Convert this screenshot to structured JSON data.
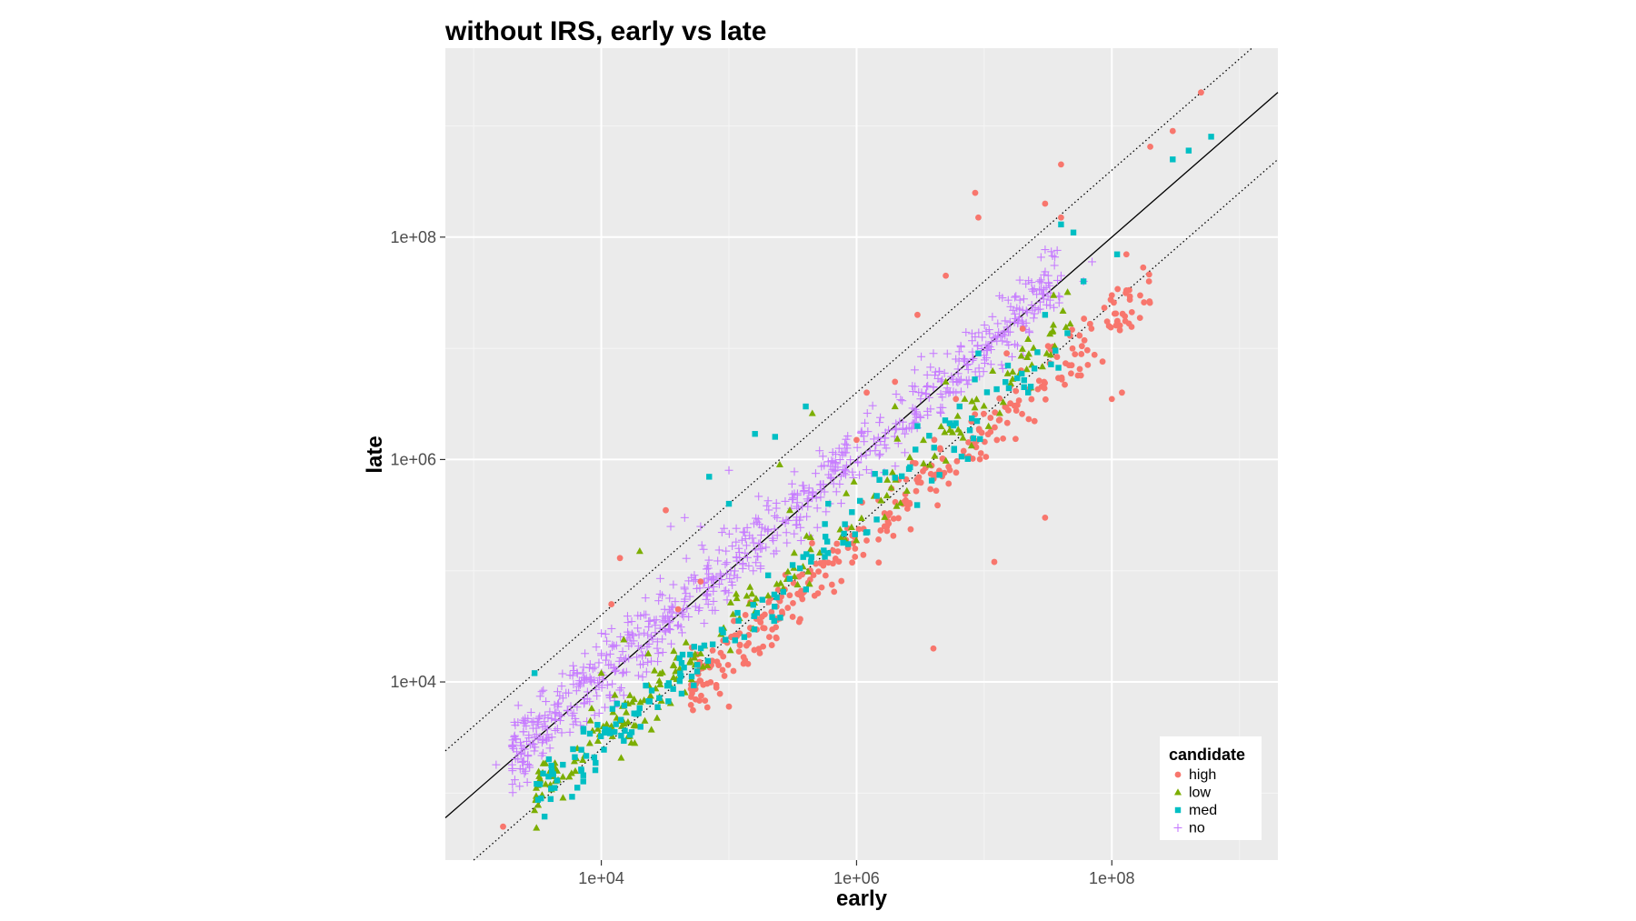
{
  "chart_data": {
    "type": "scatter",
    "title": "without IRS, early vs late",
    "xlabel": "early",
    "ylabel": "late",
    "x_scale": "log10",
    "y_scale": "log10",
    "xlim": [
      600,
      2000000000
    ],
    "ylim": [
      250,
      5000000000
    ],
    "x_ticks": [
      {
        "value": 10000,
        "label": "1e+04"
      },
      {
        "value": 1000000,
        "label": "1e+06"
      },
      {
        "value": 100000000,
        "label": "1e+08"
      }
    ],
    "y_ticks": [
      {
        "value": 10000,
        "label": "1e+04"
      },
      {
        "value": 1000000,
        "label": "1e+06"
      },
      {
        "value": 100000000,
        "label": "1e+08"
      }
    ],
    "grid": true,
    "background": "#ebebeb",
    "reference_lines": [
      {
        "kind": "identity",
        "y_equals_x_times": 1,
        "style": "solid"
      },
      {
        "kind": "upper",
        "y_equals_x_times": 4,
        "style": "dotted"
      },
      {
        "kind": "lower",
        "y_equals_x_times": 0.25,
        "style": "dotted"
      }
    ],
    "legend": {
      "title": "candidate",
      "position": "bottom-right inside",
      "entries": [
        {
          "label": "high",
          "color": "#f8766d",
          "shape": "circle"
        },
        {
          "label": "low",
          "color": "#7cae00",
          "shape": "triangle"
        },
        {
          "label": "med",
          "color": "#00bfc4",
          "shape": "square"
        },
        {
          "label": "no",
          "color": "#c77cff",
          "shape": "plus"
        }
      ]
    },
    "series": [
      {
        "name": "high",
        "color": "#f8766d",
        "shape": "circle",
        "trend": {
          "ratio": 0.18,
          "x_range": [
            50000,
            200000000
          ],
          "n": 330,
          "spread_log10": 0.15
        },
        "points": [
          [
            1700,
            500
          ],
          [
            14000,
            130000
          ],
          [
            12000,
            50000
          ],
          [
            32000,
            350000
          ],
          [
            60000,
            80000
          ],
          [
            100000,
            6000
          ],
          [
            40000,
            45000
          ],
          [
            2000000,
            5000000
          ],
          [
            1200000,
            4000000
          ],
          [
            9000000,
            150000000
          ],
          [
            8500000,
            250000000
          ],
          [
            40000000,
            450000000
          ],
          [
            30000000,
            200000000
          ],
          [
            5000000,
            45000000
          ],
          [
            3000000,
            20000000
          ],
          [
            12000000,
            120000
          ],
          [
            4000000,
            20000
          ],
          [
            30000000,
            300000
          ],
          [
            120000000,
            4000000
          ],
          [
            100000000,
            3500000
          ],
          [
            100000000,
            30000000
          ],
          [
            130000000,
            70000000
          ],
          [
            500000000,
            2000000000
          ],
          [
            300000000,
            900000000
          ],
          [
            200000000,
            650000000
          ],
          [
            40000000,
            150000000
          ],
          [
            15000000,
            9000000
          ],
          [
            6000000,
            3500000
          ],
          [
            20000000,
            15000000
          ],
          [
            1000000,
            1500000
          ]
        ]
      },
      {
        "name": "low",
        "color": "#7cae00",
        "shape": "triangle",
        "trend": {
          "ratio": 0.32,
          "x_range": [
            3000,
            50000000
          ],
          "n": 210,
          "spread_log10": 0.13
        },
        "points": [
          [
            3000,
            700
          ],
          [
            15000,
            24000
          ],
          [
            20000,
            150000
          ],
          [
            250000,
            900000
          ],
          [
            450000,
            2600000
          ],
          [
            300000,
            350000
          ],
          [
            5000000,
            5000000
          ],
          [
            2000000,
            3000000
          ],
          [
            35000000,
            30000000
          ],
          [
            45000000,
            32000000
          ],
          [
            10000,
            12000
          ],
          [
            5000,
            1400
          ],
          [
            12000,
            4000
          ],
          [
            60000,
            18000
          ]
        ]
      },
      {
        "name": "med",
        "color": "#00bfc4",
        "shape": "square",
        "trend": {
          "ratio": 0.28,
          "x_range": [
            3000,
            50000000
          ],
          "n": 170,
          "spread_log10": 0.14
        },
        "points": [
          [
            3000,
            12000
          ],
          [
            160000,
            1700000
          ],
          [
            70000,
            700000
          ],
          [
            100000,
            400000
          ],
          [
            400000,
            3000000
          ],
          [
            230000,
            1600000
          ],
          [
            40000000,
            130000000
          ],
          [
            50000000,
            110000000
          ],
          [
            60000000,
            40000000
          ],
          [
            110000000,
            70000000
          ],
          [
            300000000,
            500000000
          ],
          [
            400000000,
            600000000
          ],
          [
            600000000,
            800000000
          ],
          [
            3500,
            1500
          ],
          [
            4500,
            1300
          ],
          [
            5000,
            1800
          ],
          [
            30000000,
            20000000
          ],
          [
            9000000,
            9000000
          ],
          [
            3000000,
            2000000
          ],
          [
            600000,
            400000
          ]
        ]
      },
      {
        "name": "no",
        "color": "#c77cff",
        "shape": "plus",
        "trend": {
          "ratio": 1.1,
          "x_range": [
            2000,
            40000000
          ],
          "n": 800,
          "spread_log10": 0.16
        },
        "points": [
          [
            1500,
            1800
          ],
          [
            2000,
            1800
          ],
          [
            2500,
            1500
          ],
          [
            3500,
            3000
          ],
          [
            10000,
            18000
          ],
          [
            30000,
            60000
          ],
          [
            35000,
            250000
          ],
          [
            45000,
            300000
          ],
          [
            60000,
            250000
          ],
          [
            100000,
            800000
          ],
          [
            70000000,
            60000000
          ],
          [
            60000000,
            40000000
          ],
          [
            20000000,
            22000000
          ],
          [
            40000000,
            45000000
          ],
          [
            4000000,
            9000000
          ]
        ]
      }
    ]
  }
}
